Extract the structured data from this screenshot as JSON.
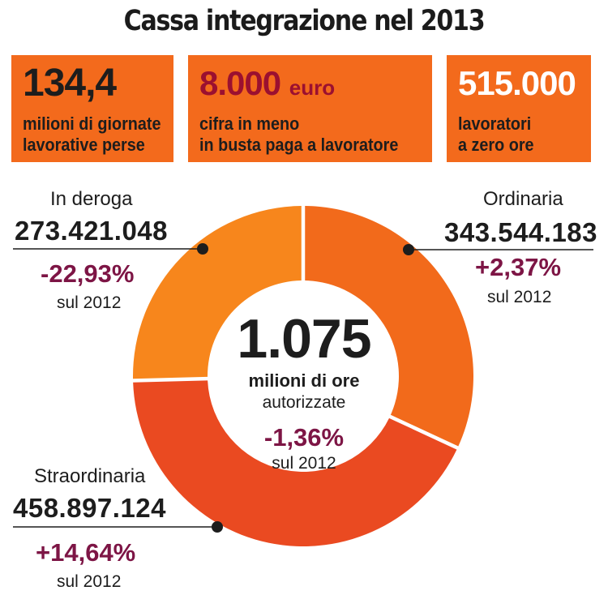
{
  "title": "Cassa integrazione nel 2013",
  "stats": [
    {
      "value": "134,4",
      "unit": "",
      "desc_line1": "milioni di giornate",
      "desc_line2": "lavorative perse"
    },
    {
      "value": "8.000",
      "unit": "euro",
      "desc_line1": "cifra in meno",
      "desc_line2": "in busta paga a lavoratore"
    },
    {
      "value": "515.000",
      "unit": "",
      "desc_line1": "lavoratori",
      "desc_line2": "a zero ore"
    }
  ],
  "colors": {
    "box": "#f36a1c",
    "deroga": "#f7861c",
    "ordinaria": "#f26a1b",
    "straordinaria": "#ea4a21",
    "change": "#7d1545"
  },
  "chart_data": {
    "type": "pie",
    "donut": true,
    "center": {
      "total": "1.075",
      "unit_line1": "milioni di ore",
      "unit_line2": "autorizzate",
      "change": "-1,36%",
      "reference": "sul 2012"
    },
    "slices": [
      {
        "name": "Ordinaria",
        "value": 343544183,
        "label": "343.544.183",
        "change": "+2,37%",
        "reference": "sul 2012"
      },
      {
        "name": "Straordinaria",
        "value": 458897124,
        "label": "458.897.124",
        "change": "+14,64%",
        "reference": "sul 2012"
      },
      {
        "name": "In deroga",
        "value": 273421048,
        "label": "273.421.048",
        "change": "-22,93%",
        "reference": "sul 2012"
      }
    ]
  }
}
